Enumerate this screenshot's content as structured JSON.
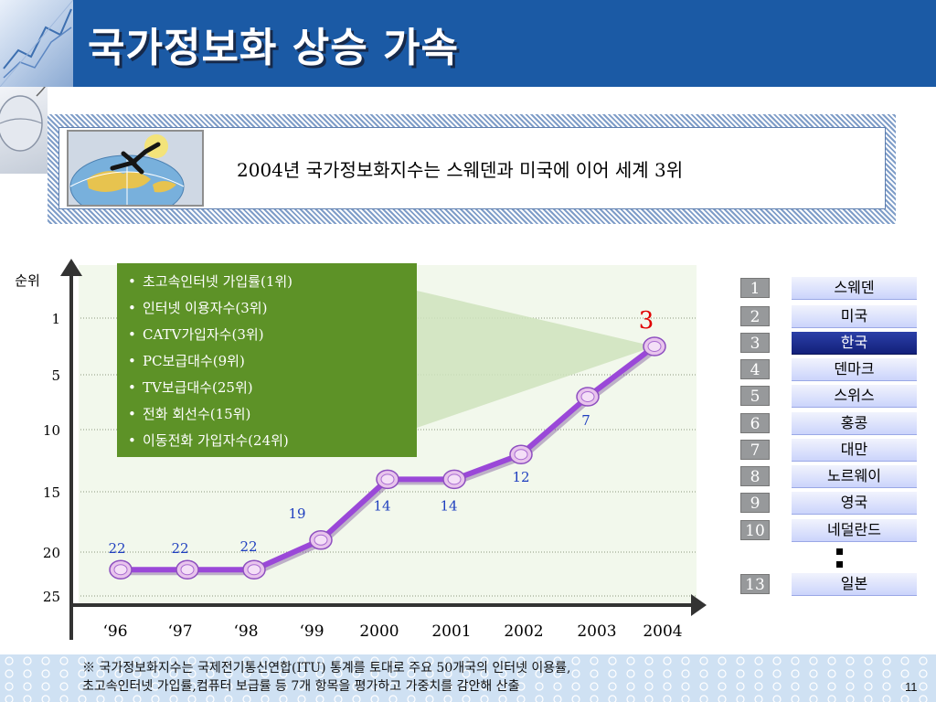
{
  "slide": {
    "title": "국가정보화 상승 가속",
    "headline": "2004년 국가정보화지수는 스웨덴과 미국에 이어 세계 3위",
    "footnote": [
      "※ 국가정보화지수는 국제전기통신연합(ITU) 통계를 토대로 주요 50개국의 인터넷 이용률,",
      "초고속인터넷 가입률,컴퓨터 보급률 등 7개 항목을 평가하고 가중치를 감안해 산출"
    ],
    "page_number": "11"
  },
  "indicators": [
    "초고속인터넷 가입률(1위)",
    "인터넷 이용자수(3위)",
    "CATV가입자수(3위)",
    "PC보급대수(9위)",
    "TV보급대수(25위)",
    "전화 회선수(15위)",
    "이동전화 가입자수(24위)"
  ],
  "ranking": [
    {
      "rank": "1",
      "country": "스웨덴"
    },
    {
      "rank": "2",
      "country": "미국"
    },
    {
      "rank": "3",
      "country": "한국",
      "highlight": true
    },
    {
      "rank": "4",
      "country": "덴마크"
    },
    {
      "rank": "5",
      "country": "스위스"
    },
    {
      "rank": "6",
      "country": "홍콩"
    },
    {
      "rank": "7",
      "country": "대만"
    },
    {
      "rank": "8",
      "country": "노르웨이"
    },
    {
      "rank": "9",
      "country": "영국"
    },
    {
      "rank": "10",
      "country": "네덜란드"
    },
    {
      "rank": "13",
      "country": "일본"
    }
  ],
  "colors": {
    "header": "#1b5aa5",
    "line": "#9a48d8",
    "marker": "#e8c4ec",
    "label": "#1f3fbf",
    "highlight_label": "#e00000",
    "indicator_box": "#5d9227",
    "plot_bg": "#f2f8ec"
  },
  "chart_data": {
    "type": "line",
    "ylabel": "순위",
    "categories": [
      "‘96",
      "‘97",
      "‘98",
      "‘99",
      "2000",
      "2001",
      "2002",
      "2003",
      "2004"
    ],
    "values": [
      22,
      22,
      22,
      19,
      14,
      14,
      12,
      7,
      3
    ],
    "value_labels": [
      "22",
      "22",
      "22",
      "19",
      "14",
      "14",
      "12",
      "7",
      "3"
    ],
    "yticks": [
      "1",
      "5",
      "10",
      "15",
      "20",
      "25"
    ],
    "y_inverted": true,
    "grid": "dotted"
  }
}
